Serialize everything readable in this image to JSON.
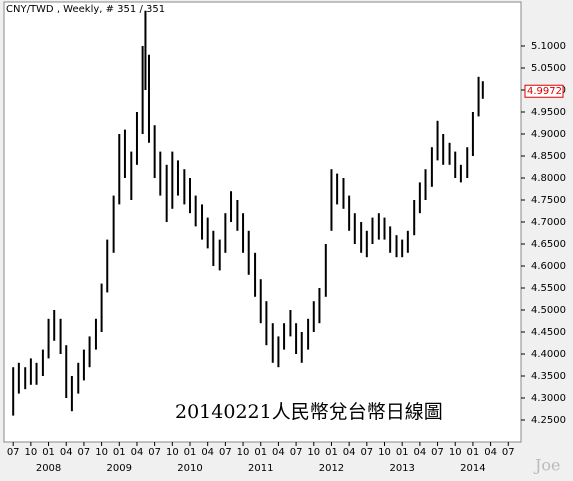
{
  "chart_data": {
    "type": "ohlc",
    "title": "CNY/TWD , Weekly, # 351 / 351",
    "annotation": "20140221人民幣兌台幣日線圖",
    "watermark": "Joe",
    "color": "#000000",
    "x": [
      2007.5,
      2007.58,
      2007.67,
      2007.75,
      2007.83,
      2007.92,
      2008.0,
      2008.08,
      2008.17,
      2008.25,
      2008.33,
      2008.42,
      2008.5,
      2008.58,
      2008.67,
      2008.75,
      2008.83,
      2008.92,
      2009.0,
      2009.08,
      2009.17,
      2009.25,
      2009.33,
      2009.37,
      2009.42,
      2009.5,
      2009.58,
      2009.67,
      2009.75,
      2009.83,
      2009.92,
      2010.0,
      2010.08,
      2010.17,
      2010.25,
      2010.33,
      2010.42,
      2010.5,
      2010.58,
      2010.67,
      2010.75,
      2010.83,
      2010.92,
      2011.0,
      2011.08,
      2011.17,
      2011.25,
      2011.33,
      2011.42,
      2011.5,
      2011.58,
      2011.67,
      2011.75,
      2011.83,
      2011.92,
      2012.0,
      2012.08,
      2012.17,
      2012.25,
      2012.33,
      2012.42,
      2012.5,
      2012.58,
      2012.67,
      2012.75,
      2012.83,
      2012.92,
      2013.0,
      2013.08,
      2013.17,
      2013.25,
      2013.33,
      2013.42,
      2013.5,
      2013.58,
      2013.67,
      2013.75,
      2013.83,
      2013.92,
      2014.0,
      2014.08,
      2014.14
    ],
    "high": [
      4.37,
      4.38,
      4.37,
      4.39,
      4.38,
      4.41,
      4.48,
      4.5,
      4.48,
      4.42,
      4.35,
      4.38,
      4.41,
      4.44,
      4.48,
      4.56,
      4.66,
      4.76,
      4.9,
      4.91,
      4.86,
      4.95,
      5.1,
      5.18,
      5.08,
      4.92,
      4.86,
      4.83,
      4.86,
      4.84,
      4.82,
      4.8,
      4.76,
      4.74,
      4.71,
      4.68,
      4.66,
      4.72,
      4.77,
      4.75,
      4.72,
      4.68,
      4.63,
      4.57,
      4.52,
      4.47,
      4.44,
      4.47,
      4.5,
      4.47,
      4.45,
      4.48,
      4.52,
      4.55,
      4.65,
      4.82,
      4.81,
      4.8,
      4.76,
      4.72,
      4.7,
      4.68,
      4.71,
      4.72,
      4.71,
      4.69,
      4.67,
      4.66,
      4.68,
      4.75,
      4.79,
      4.82,
      4.87,
      4.93,
      4.9,
      4.88,
      4.86,
      4.83,
      4.87,
      4.95,
      5.03,
      5.02
    ],
    "low": [
      4.26,
      4.31,
      4.32,
      4.33,
      4.33,
      4.35,
      4.39,
      4.43,
      4.4,
      4.3,
      4.27,
      4.31,
      4.34,
      4.37,
      4.41,
      4.45,
      4.54,
      4.63,
      4.74,
      4.8,
      4.75,
      4.83,
      4.9,
      5.0,
      4.88,
      4.8,
      4.76,
      4.7,
      4.73,
      4.76,
      4.74,
      4.72,
      4.69,
      4.66,
      4.64,
      4.6,
      4.59,
      4.63,
      4.7,
      4.68,
      4.63,
      4.58,
      4.53,
      4.47,
      4.42,
      4.38,
      4.37,
      4.41,
      4.44,
      4.4,
      4.38,
      4.41,
      4.45,
      4.47,
      4.53,
      4.68,
      4.74,
      4.73,
      4.68,
      4.65,
      4.63,
      4.62,
      4.65,
      4.66,
      4.66,
      4.63,
      4.62,
      4.62,
      4.63,
      4.67,
      4.72,
      4.75,
      4.78,
      4.84,
      4.83,
      4.83,
      4.8,
      4.79,
      4.8,
      4.85,
      4.94,
      4.98
    ],
    "last_price": {
      "value": 4.9972,
      "label": "4.9972"
    },
    "ylim": [
      4.2,
      5.2
    ],
    "yticks": [
      {
        "value": 4.25,
        "label": "4.2500"
      },
      {
        "value": 4.3,
        "label": "4.3000"
      },
      {
        "value": 4.35,
        "label": "4.3500"
      },
      {
        "value": 4.4,
        "label": "4.4000"
      },
      {
        "value": 4.45,
        "label": "4.4500"
      },
      {
        "value": 4.5,
        "label": "4.5000"
      },
      {
        "value": 4.55,
        "label": "4.5500"
      },
      {
        "value": 4.6,
        "label": "4.6000"
      },
      {
        "value": 4.65,
        "label": "4.6500"
      },
      {
        "value": 4.7,
        "label": "4.7000"
      },
      {
        "value": 4.75,
        "label": "4.7500"
      },
      {
        "value": 4.8,
        "label": "4.8000"
      },
      {
        "value": 4.85,
        "label": "4.8500"
      },
      {
        "value": 4.9,
        "label": "4.9000"
      },
      {
        "value": 4.95,
        "label": "4.9500"
      },
      {
        "value": 5.0,
        "label": "5.0000"
      },
      {
        "value": 5.05,
        "label": "5.0500"
      },
      {
        "value": 5.1,
        "label": "5.1000"
      }
    ],
    "xlim": [
      2007.37,
      2014.68
    ],
    "xticks": [
      {
        "value": 2007.5,
        "label": "07"
      },
      {
        "value": 2007.75,
        "label": "10"
      },
      {
        "value": 2008.0,
        "label": "01"
      },
      {
        "value": 2008.25,
        "label": "04"
      },
      {
        "value": 2008.5,
        "label": "07"
      },
      {
        "value": 2008.75,
        "label": "10"
      },
      {
        "value": 2009.0,
        "label": "01"
      },
      {
        "value": 2009.25,
        "label": "04"
      },
      {
        "value": 2009.5,
        "label": "07"
      },
      {
        "value": 2009.75,
        "label": "10"
      },
      {
        "value": 2010.0,
        "label": "01"
      },
      {
        "value": 2010.25,
        "label": "04"
      },
      {
        "value": 2010.5,
        "label": "07"
      },
      {
        "value": 2010.75,
        "label": "10"
      },
      {
        "value": 2011.0,
        "label": "01"
      },
      {
        "value": 2011.25,
        "label": "04"
      },
      {
        "value": 2011.5,
        "label": "07"
      },
      {
        "value": 2011.75,
        "label": "10"
      },
      {
        "value": 2012.0,
        "label": "01"
      },
      {
        "value": 2012.25,
        "label": "04"
      },
      {
        "value": 2012.5,
        "label": "07"
      },
      {
        "value": 2012.75,
        "label": "10"
      },
      {
        "value": 2013.0,
        "label": "01"
      },
      {
        "value": 2013.25,
        "label": "04"
      },
      {
        "value": 2013.5,
        "label": "07"
      },
      {
        "value": 2013.75,
        "label": "10"
      },
      {
        "value": 2014.0,
        "label": "01"
      },
      {
        "value": 2014.25,
        "label": "04"
      },
      {
        "value": 2014.5,
        "label": "07"
      }
    ],
    "year_ticks": [
      2008,
      2009,
      2010,
      2011,
      2012,
      2013,
      2014
    ]
  }
}
